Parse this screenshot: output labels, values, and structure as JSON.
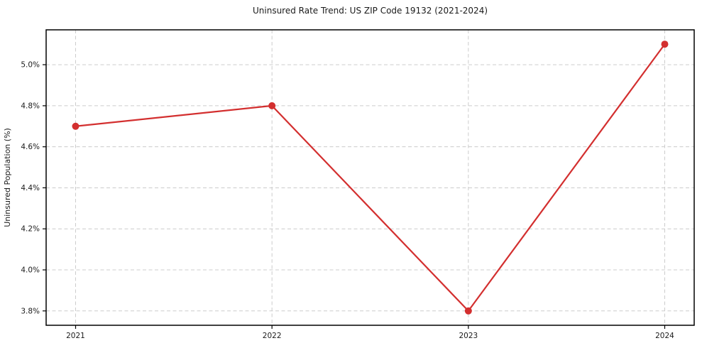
{
  "chart_data": {
    "type": "line",
    "title": "Uninsured Rate Trend: US ZIP Code 19132 (2021-2024)",
    "xlabel": "",
    "ylabel": "Uninsured Population (%)",
    "x": [
      2021,
      2022,
      2023,
      2024
    ],
    "x_tick_labels": [
      "2021",
      "2022",
      "2023",
      "2024"
    ],
    "values": [
      4.7,
      4.8,
      3.8,
      5.1
    ],
    "y_ticks": [
      {
        "value": 3.8,
        "label": "3.8%"
      },
      {
        "value": 4.0,
        "label": "4.0%"
      },
      {
        "value": 4.2,
        "label": "4.2%"
      },
      {
        "value": 4.4,
        "label": "4.4%"
      },
      {
        "value": 4.6,
        "label": "4.6%"
      },
      {
        "value": 4.8,
        "label": "4.8%"
      },
      {
        "value": 5.0,
        "label": "5.0%"
      }
    ],
    "xlim": [
      2020.85,
      2024.15
    ],
    "ylim": [
      3.73,
      5.17
    ],
    "grid": true,
    "grid_style": "dashed",
    "legend": "none",
    "marker": "circle",
    "line_color": "#d32f2f",
    "grid_color": "#cccccc",
    "axis_color": "#000000",
    "text_color": "#1a1a1a",
    "background_color": "#ffffff"
  }
}
